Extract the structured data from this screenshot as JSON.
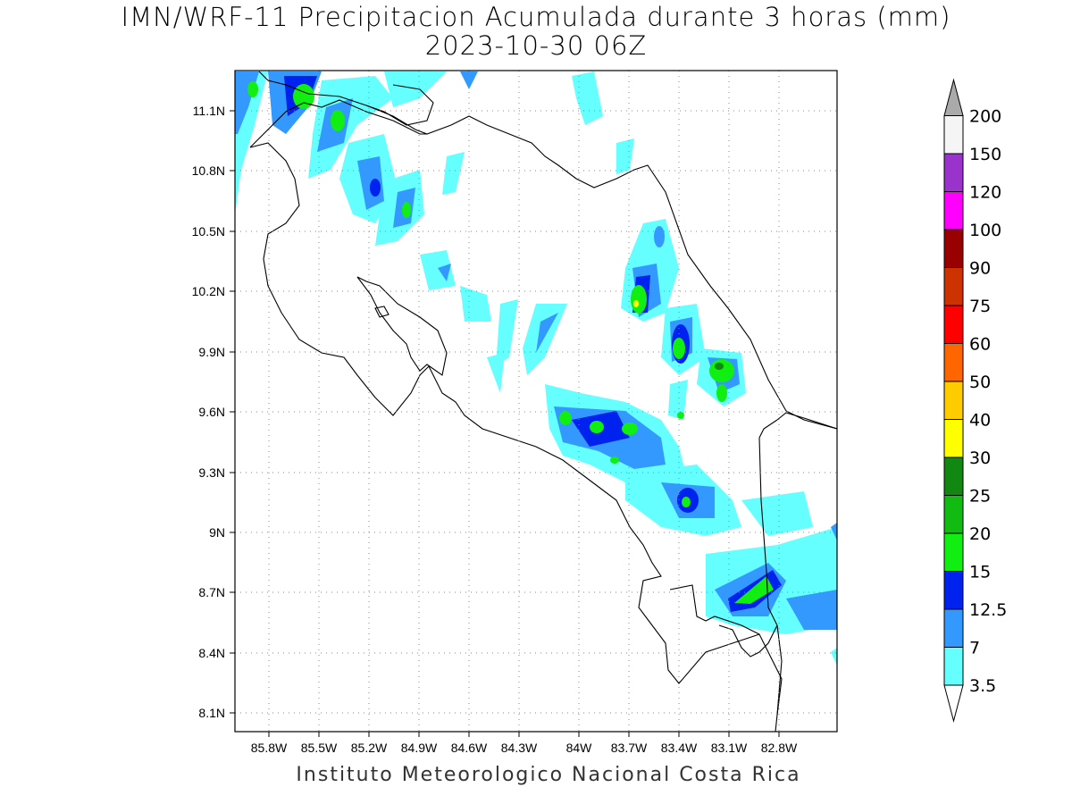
{
  "title_line1": "IMN/WRF-11 Precipitacion Acumulada durante 3 horas (mm)",
  "title_line2": "2023-10-30 06Z",
  "footer": "Instituto Meteorologico Nacional Costa Rica",
  "lat_labels": [
    "11.1N",
    "10.8N",
    "10.5N",
    "10.2N",
    "9.9N",
    "9.6N",
    "9.3N",
    "9N",
    "8.7N",
    "8.4N",
    "8.1N"
  ],
  "lon_labels": [
    "85.8W",
    "85.5W",
    "85.2W",
    "84.9W",
    "84.6W",
    "84.3W",
    "84W",
    "83.7W",
    "83.4W",
    "83.1W",
    "82.8W"
  ],
  "colorbar": {
    "labels": [
      "3.5",
      "7",
      "12.5",
      "15",
      "20",
      "25",
      "30",
      "40",
      "50",
      "60",
      "75",
      "90",
      "100",
      "120",
      "150",
      "200"
    ],
    "colors": [
      "#ffffff",
      "#66ffff",
      "#3399ff",
      "#0022ee",
      "#11ee11",
      "#11bb11",
      "#118811",
      "#ffff00",
      "#ffcc00",
      "#ff6600",
      "#ff0000",
      "#cc3300",
      "#990000",
      "#ff00ff",
      "#9933cc",
      "#f5f5f5",
      "#aaaaaa"
    ]
  }
}
